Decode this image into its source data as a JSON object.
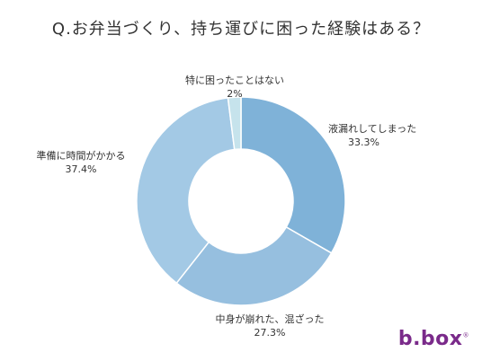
{
  "chart_data": {
    "type": "pie",
    "title": "Q.お弁当づくり、持ち運びに困った経験はある？",
    "categories": [
      "液漏れしてしまった",
      "中身が崩れた、混ざった",
      "準備に時間がかかる",
      "特に困ったことはない"
    ],
    "values": [
      33.3,
      27.3,
      37.4,
      2
    ],
    "value_labels": [
      "33.3%",
      "27.3%",
      "37.4%",
      "2%"
    ],
    "colors": [
      "#7fb2d8",
      "#96bfdf",
      "#a3c9e5",
      "#c6e3ec"
    ],
    "donut": true,
    "legend": "none"
  },
  "brand": {
    "logo_main": "b.box",
    "logo_mark": "®",
    "color": "#7a2a8a"
  }
}
